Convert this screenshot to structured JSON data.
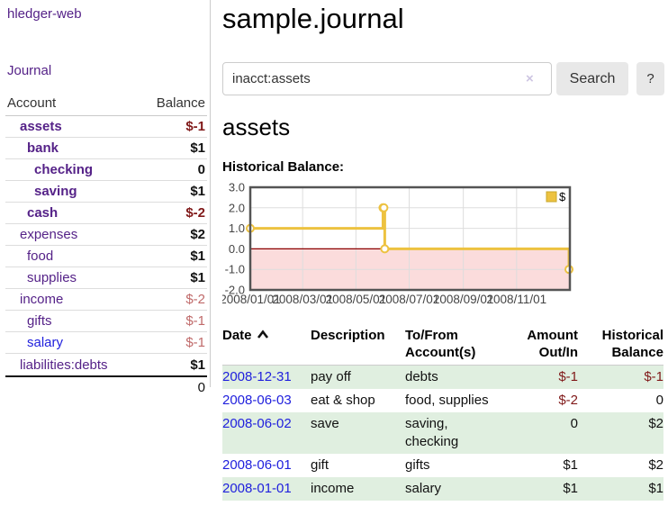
{
  "app": {
    "brand": "hledger-web"
  },
  "sidebar": {
    "journal_link": "Journal",
    "account_header": "Account",
    "balance_header": "Balance",
    "accounts": [
      {
        "name": "assets",
        "depth": 1,
        "bold": true,
        "balance": "$-1",
        "balance_class": "neg-strong",
        "balance_bold": true
      },
      {
        "name": "bank",
        "depth": 2,
        "bold": true,
        "balance": "$1",
        "balance_class": "",
        "balance_bold": true
      },
      {
        "name": "checking",
        "depth": 3,
        "bold": true,
        "balance": "0",
        "balance_class": "",
        "balance_bold": true
      },
      {
        "name": "saving",
        "depth": 3,
        "bold": true,
        "balance": "$1",
        "balance_class": "",
        "balance_bold": true
      },
      {
        "name": "cash",
        "depth": 2,
        "bold": true,
        "balance": "$-2",
        "balance_class": "neg-strong",
        "balance_bold": true
      },
      {
        "name": "expenses",
        "depth": 1,
        "bold": false,
        "balance": "$2",
        "balance_class": "",
        "balance_bold": true
      },
      {
        "name": "food",
        "depth": 2,
        "bold": false,
        "balance": "$1",
        "balance_class": "",
        "balance_bold": true
      },
      {
        "name": "supplies",
        "depth": 2,
        "bold": false,
        "balance": "$1",
        "balance_class": "",
        "balance_bold": true
      },
      {
        "name": "income",
        "depth": 1,
        "bold": false,
        "balance": "$-2",
        "balance_class": "neg-soft",
        "balance_bold": false
      },
      {
        "name": "gifts",
        "depth": 2,
        "bold": false,
        "balance": "$-1",
        "balance_class": "neg-soft",
        "balance_bold": false
      },
      {
        "name": "salary",
        "depth": 2,
        "bold": false,
        "balance": "$-1",
        "balance_class": "neg-soft",
        "balance_bold": false,
        "blue_link": true
      },
      {
        "name": "liabilities:debts",
        "depth": 1,
        "bold": false,
        "balance": "$1",
        "balance_class": "",
        "balance_bold": true
      }
    ],
    "total": "0"
  },
  "main": {
    "title": "sample.journal",
    "search": {
      "value": "inacct:assets",
      "clear_icon": "×",
      "button_label": "Search",
      "help_label": "?"
    },
    "account_heading": "assets",
    "chart_label": "Historical Balance:"
  },
  "chart_data": {
    "type": "line",
    "style": "steps",
    "title": "Historical Balance:",
    "series": [
      {
        "name": "$",
        "color": "#edc240",
        "points": [
          [
            "2008-01-01",
            1
          ],
          [
            "2008-06-01",
            2
          ],
          [
            "2008-06-02",
            2
          ],
          [
            "2008-06-03",
            0
          ],
          [
            "2008-12-31",
            -1
          ]
        ]
      }
    ],
    "x_range": [
      "2008-01-01",
      "2009-01-01"
    ],
    "x_ticks": [
      "2008/01/01",
      "2008/03/01",
      "2008/05/01",
      "2008/07/01",
      "2008/09/01",
      "2008/11/01"
    ],
    "y_ticks": [
      "3.0",
      "2.0",
      "1.0",
      "0.0",
      "-1.0",
      "-2.0"
    ],
    "ylim": [
      -2,
      3
    ],
    "grid": true,
    "legend_position": "top-right",
    "legend_label": "$",
    "negative_region_color": "#fbdcdc",
    "zero_line_color": "#8b0000",
    "grid_color": "#dddddd",
    "border_color": "#545454",
    "marker_fill": "#ffffff"
  },
  "register": {
    "headers": {
      "date": "Date",
      "sort_direction": "ascending",
      "description": "Description",
      "tofrom_line1": "To/From",
      "tofrom_line2": "Account(s)",
      "amount_line1": "Amount",
      "amount_line2": "Out/In",
      "balance_line1": "Historical",
      "balance_line2": "Balance"
    },
    "rows": [
      {
        "date": "2008-12-31",
        "description": "pay off",
        "accounts": "debts",
        "amount": "$-1",
        "amount_negative": true,
        "balance": "$-1",
        "balance_negative": true
      },
      {
        "date": "2008-06-03",
        "description": "eat & shop",
        "accounts": "food, supplies",
        "amount": "$-2",
        "amount_negative": true,
        "balance": "0",
        "balance_negative": false
      },
      {
        "date": "2008-06-02",
        "description": "save",
        "accounts": "saving, checking",
        "amount": "0",
        "amount_negative": false,
        "balance": "$2",
        "balance_negative": false
      },
      {
        "date": "2008-06-01",
        "description": "gift",
        "accounts": "gifts",
        "amount": "$1",
        "amount_negative": false,
        "balance": "$2",
        "balance_negative": false
      },
      {
        "date": "2008-01-01",
        "description": "income",
        "accounts": "salary",
        "amount": "$1",
        "amount_negative": false,
        "balance": "$1",
        "balance_negative": false
      }
    ]
  },
  "colors": {
    "link_purple": "#552288",
    "link_blue": "#2020dd",
    "negative_strong": "#801919",
    "negative_soft": "#c06a6a",
    "row_stripe_green": "#e0efe0",
    "button_gray": "#e8e8e8"
  }
}
